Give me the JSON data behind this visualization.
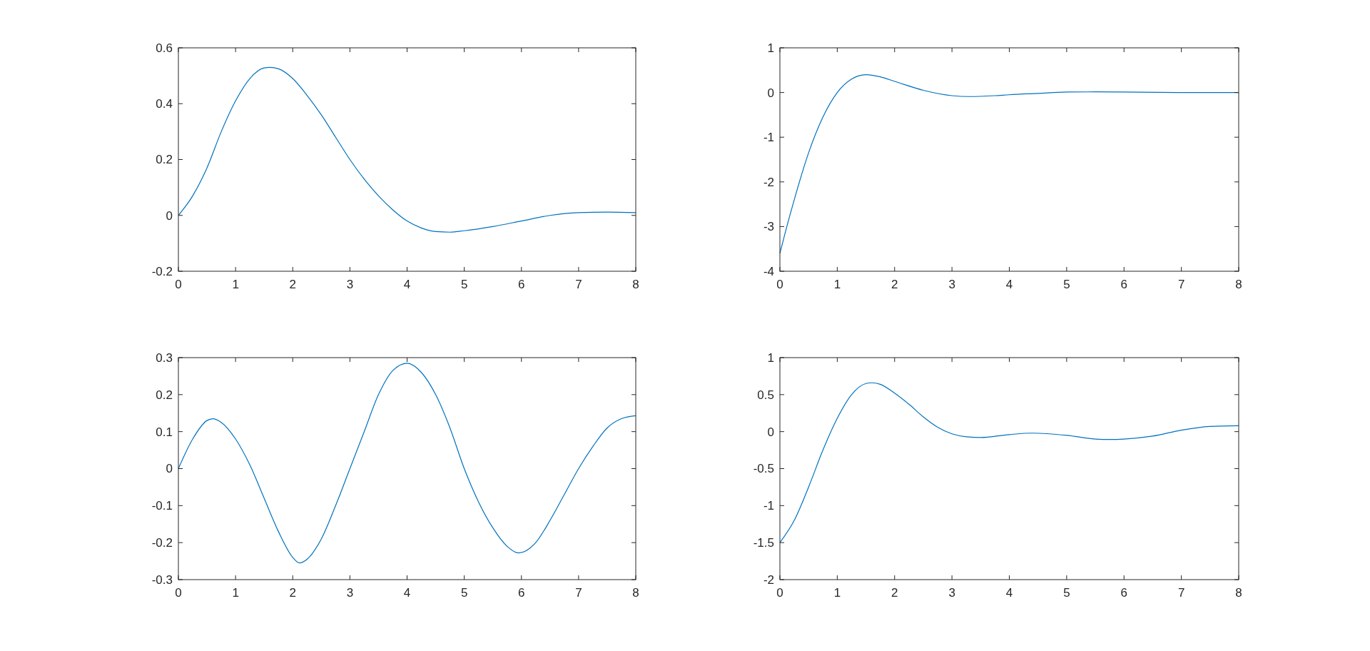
{
  "chart_data": [
    {
      "type": "line",
      "x": [
        0,
        0.25,
        0.5,
        0.75,
        1,
        1.25,
        1.5,
        1.6,
        1.75,
        2,
        2.25,
        2.5,
        2.75,
        3,
        3.25,
        3.5,
        3.75,
        4,
        4.25,
        4.5,
        4.75,
        5,
        5.5,
        6,
        6.5,
        7,
        7.5,
        8
      ],
      "series": [
        {
          "color": "#0072bd",
          "values": [
            0,
            0.07,
            0.17,
            0.3,
            0.41,
            0.49,
            0.528,
            0.53,
            0.525,
            0.49,
            0.43,
            0.36,
            0.28,
            0.2,
            0.13,
            0.07,
            0.02,
            -0.02,
            -0.045,
            -0.058,
            -0.06,
            -0.055,
            -0.04,
            -0.02,
            0,
            0.01,
            0.012,
            0.01
          ]
        }
      ],
      "xlim": [
        0,
        8
      ],
      "ylim": [
        -0.2,
        0.6
      ],
      "xticks": [
        0,
        1,
        2,
        3,
        4,
        5,
        6,
        7,
        8
      ],
      "yticks": [
        -0.2,
        0,
        0.2,
        0.4,
        0.6
      ],
      "grid": false
    },
    {
      "type": "line",
      "x": [
        0,
        0.1,
        0.25,
        0.5,
        0.75,
        1,
        1.25,
        1.5,
        1.75,
        2,
        2.5,
        3,
        3.3,
        3.75,
        4,
        4.5,
        5,
        5.5,
        6,
        7,
        8
      ],
      "series": [
        {
          "color": "#0072bd",
          "values": [
            -3.6,
            -3.1,
            -2.4,
            -1.35,
            -0.55,
            0,
            0.3,
            0.4,
            0.35,
            0.25,
            0.05,
            -0.07,
            -0.09,
            -0.07,
            -0.05,
            -0.02,
            0.01,
            0.015,
            0.01,
            0,
            0
          ]
        }
      ],
      "xlim": [
        0,
        8
      ],
      "ylim": [
        -4,
        1
      ],
      "xticks": [
        0,
        1,
        2,
        3,
        4,
        5,
        6,
        7,
        8
      ],
      "yticks": [
        -4,
        -3,
        -2,
        -1,
        0,
        1
      ],
      "grid": false
    },
    {
      "type": "line",
      "x": [
        0,
        0.25,
        0.5,
        0.6,
        0.75,
        1,
        1.25,
        1.5,
        1.75,
        2,
        2.12,
        2.25,
        2.5,
        2.75,
        3,
        3.25,
        3.5,
        3.75,
        4,
        4.25,
        4.5,
        4.75,
        5,
        5.25,
        5.5,
        5.75,
        5.95,
        6.25,
        6.5,
        6.75,
        7,
        7.25,
        7.5,
        7.75,
        8
      ],
      "series": [
        {
          "color": "#0072bd",
          "values": [
            0,
            0.08,
            0.13,
            0.135,
            0.125,
            0.08,
            0.01,
            -0.08,
            -0.17,
            -0.24,
            -0.255,
            -0.245,
            -0.19,
            -0.1,
            0,
            0.1,
            0.2,
            0.265,
            0.285,
            0.26,
            0.2,
            0.11,
            0,
            -0.09,
            -0.16,
            -0.21,
            -0.228,
            -0.2,
            -0.14,
            -0.07,
            0,
            0.06,
            0.11,
            0.135,
            0.143
          ]
        }
      ],
      "xlim": [
        0,
        8
      ],
      "ylim": [
        -0.3,
        0.3
      ],
      "xticks": [
        0,
        1,
        2,
        3,
        4,
        5,
        6,
        7,
        8
      ],
      "yticks": [
        -0.3,
        -0.2,
        -0.1,
        0,
        0.1,
        0.2,
        0.3
      ],
      "grid": false
    },
    {
      "type": "line",
      "x": [
        0,
        0.25,
        0.5,
        0.75,
        1,
        1.25,
        1.5,
        1.6,
        1.75,
        2,
        2.25,
        2.5,
        2.75,
        3,
        3.25,
        3.5,
        4,
        4.4,
        5,
        5.5,
        5.75,
        6,
        6.5,
        7,
        7.5,
        8
      ],
      "series": [
        {
          "color": "#0072bd",
          "values": [
            -1.5,
            -1.2,
            -0.75,
            -0.25,
            0.18,
            0.5,
            0.65,
            0.66,
            0.64,
            0.52,
            0.37,
            0.2,
            0.06,
            -0.03,
            -0.07,
            -0.08,
            -0.04,
            -0.02,
            -0.05,
            -0.1,
            -0.105,
            -0.1,
            -0.06,
            0.02,
            0.07,
            0.08
          ]
        }
      ],
      "xlim": [
        0,
        8
      ],
      "ylim": [
        -2,
        1
      ],
      "xticks": [
        0,
        1,
        2,
        3,
        4,
        5,
        6,
        7,
        8
      ],
      "yticks": [
        -2,
        -1.5,
        -1,
        -0.5,
        0,
        0.5,
        1
      ],
      "grid": false
    }
  ]
}
